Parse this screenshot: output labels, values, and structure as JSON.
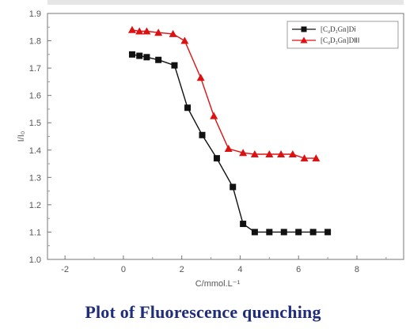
{
  "caption": "Plot of Fluorescence quenching",
  "chart_data": {
    "type": "line",
    "title": "",
    "xlabel": "C/mmol.L⁻¹",
    "ylabel": "I/I₀",
    "xlim": [
      -2.6,
      9.6
    ],
    "ylim": [
      1.0,
      1.9
    ],
    "x_ticks": [
      -2,
      0,
      2,
      4,
      6,
      8
    ],
    "y_ticks": [
      1.0,
      1.1,
      1.2,
      1.3,
      1.4,
      1.5,
      1.6,
      1.7,
      1.8,
      1.9
    ],
    "grid": false,
    "legend_position": "top-right",
    "series": [
      {
        "name": "[C₄D₃Gn]Dⅰ",
        "color": "#111111",
        "marker": "square",
        "x": [
          0.3,
          0.55,
          0.8,
          1.2,
          1.75,
          2.2,
          2.7,
          3.2,
          3.75,
          4.1,
          4.5,
          5.0,
          5.5,
          6.0,
          6.5,
          7.0
        ],
        "y": [
          1.75,
          1.745,
          1.74,
          1.73,
          1.71,
          1.555,
          1.455,
          1.37,
          1.265,
          1.13,
          1.1,
          1.1,
          1.1,
          1.1,
          1.1,
          1.1
        ]
      },
      {
        "name": "[C₄D₃Gn]DⅡⅠ",
        "color": "#dd1111",
        "marker": "triangle",
        "x": [
          0.3,
          0.55,
          0.8,
          1.2,
          1.7,
          2.1,
          2.65,
          3.1,
          3.6,
          4.1,
          4.5,
          5.0,
          5.4,
          5.8,
          6.2,
          6.6
        ],
        "y": [
          1.84,
          1.835,
          1.835,
          1.83,
          1.825,
          1.8,
          1.665,
          1.525,
          1.405,
          1.39,
          1.385,
          1.385,
          1.385,
          1.385,
          1.37,
          1.37
        ]
      }
    ]
  }
}
